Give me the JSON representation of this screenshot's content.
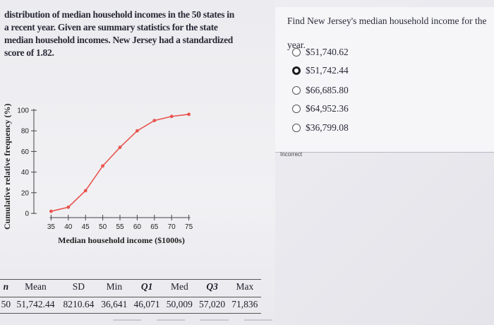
{
  "question": {
    "lines": [
      "distribution of median household incomes in the 50 states in",
      "a recent year. Given are summary statistics for the state",
      "median household incomes. New Jersey had a standardized",
      "score of 1.82."
    ]
  },
  "chart_data": {
    "type": "line",
    "xlabel": "Median household income ($1000s)",
    "ylabel": "Cumulative relative frequency (%)",
    "x": [
      35,
      40,
      45,
      50,
      55,
      60,
      65,
      70,
      75
    ],
    "values": [
      2,
      6,
      22,
      46,
      64,
      80,
      90,
      94,
      96
    ],
    "x_ticks": [
      "35",
      "40",
      "45",
      "50",
      "55",
      "60",
      "65",
      "70",
      "75"
    ],
    "y_ticks": [
      "0",
      "20",
      "40",
      "60",
      "80",
      "100"
    ],
    "xlim": [
      30,
      80
    ],
    "ylim": [
      0,
      100
    ],
    "line_color": "#e8554e",
    "grid": false
  },
  "stats": {
    "headers": [
      "n",
      "Mean",
      "SD",
      "Min",
      "Q1",
      "Med",
      "Q3",
      "Max"
    ],
    "row": [
      "50",
      "51,742.44",
      "8210.64",
      "36,641",
      "46,071",
      "50,009",
      "57,020",
      "71,836"
    ]
  },
  "answer": {
    "prompt_line1": "Find New Jersey's median household income for the",
    "prompt_line2": "year.",
    "options": [
      "$51,740.62",
      "$51,742.44",
      "$66,685.80",
      "$64,952.36",
      "$36,799.08"
    ],
    "selected_index": 1,
    "feedback": "Incorrect"
  }
}
